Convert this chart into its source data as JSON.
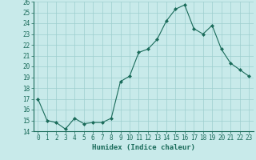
{
  "x": [
    0,
    1,
    2,
    3,
    4,
    5,
    6,
    7,
    8,
    9,
    10,
    11,
    12,
    13,
    14,
    15,
    16,
    17,
    18,
    19,
    20,
    21,
    22,
    23
  ],
  "y": [
    17.0,
    15.0,
    14.8,
    14.2,
    15.2,
    14.7,
    14.8,
    14.8,
    15.2,
    18.6,
    19.1,
    21.3,
    21.6,
    22.5,
    24.2,
    25.3,
    25.7,
    23.5,
    23.0,
    23.8,
    21.6,
    20.3,
    19.7,
    19.1
  ],
  "line_color": "#1a6b5a",
  "marker": "D",
  "marker_size": 2,
  "bg_color": "#c8eaea",
  "grid_color": "#9ecece",
  "xlabel": "Humidex (Indice chaleur)",
  "ylim": [
    14,
    26
  ],
  "xlim": [
    -0.5,
    23.5
  ],
  "yticks": [
    14,
    15,
    16,
    17,
    18,
    19,
    20,
    21,
    22,
    23,
    24,
    25,
    26
  ],
  "xticks": [
    0,
    1,
    2,
    3,
    4,
    5,
    6,
    7,
    8,
    9,
    10,
    11,
    12,
    13,
    14,
    15,
    16,
    17,
    18,
    19,
    20,
    21,
    22,
    23
  ],
  "xlabel_fontsize": 6.5,
  "tick_fontsize": 5.5
}
